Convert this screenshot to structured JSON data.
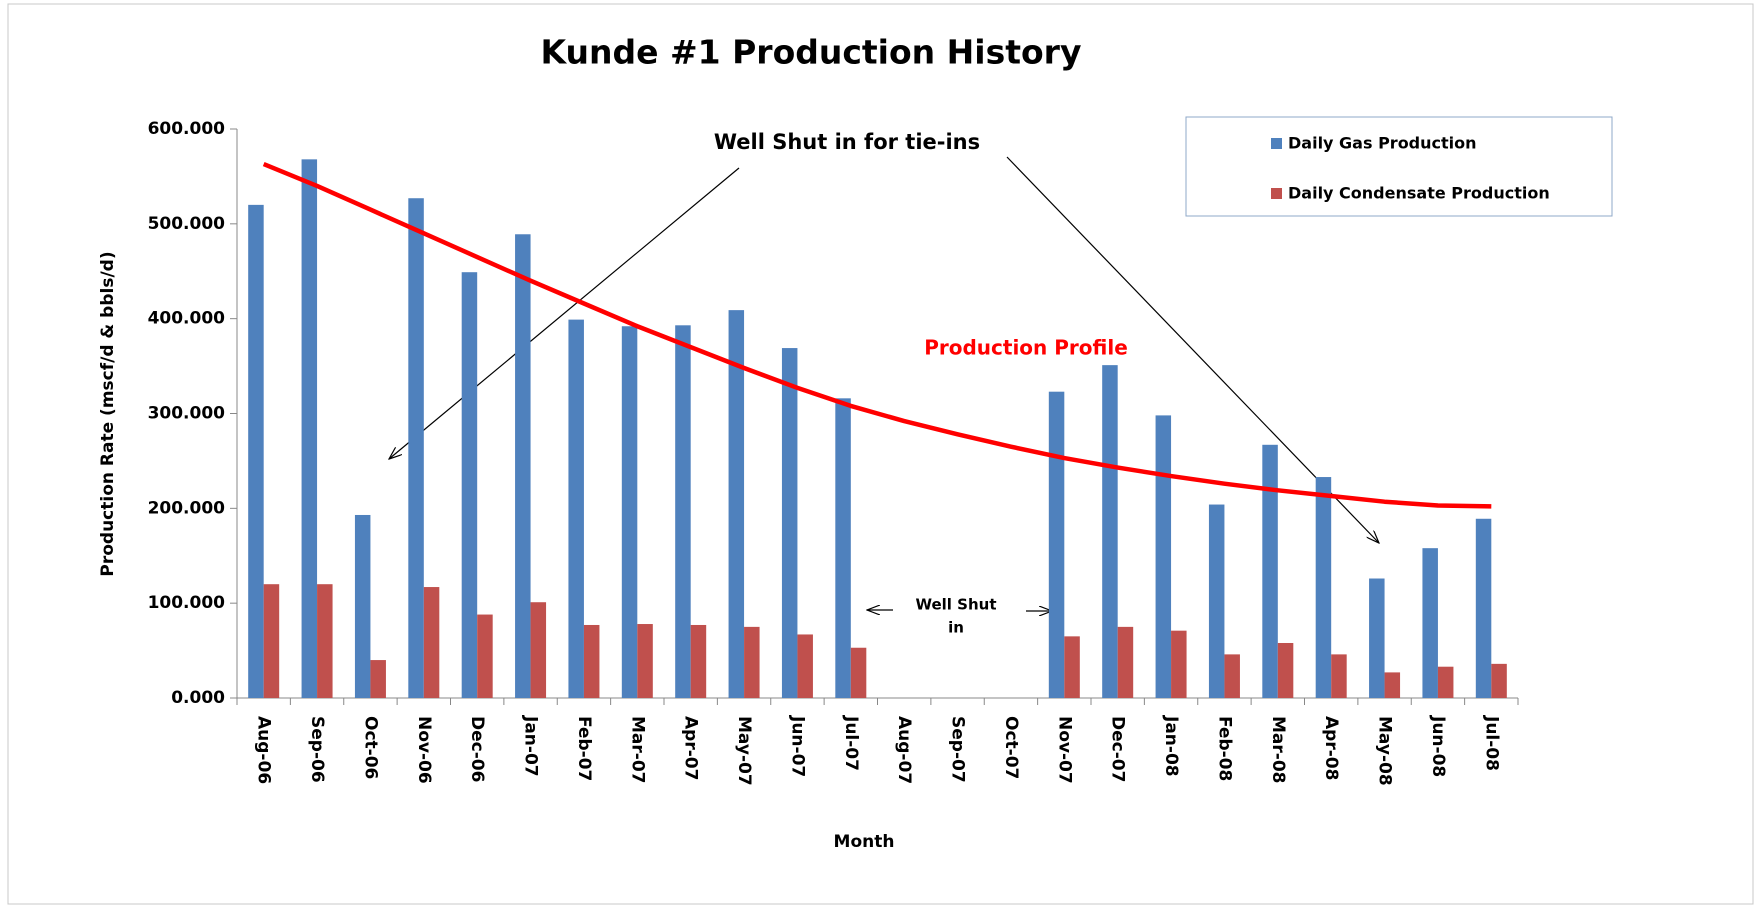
{
  "chart_data": {
    "type": "bar",
    "title": "Kunde #1  Production History",
    "x_label": "Month",
    "y_label": "Production Rate  (mscf/d & bbls/d)",
    "categories": [
      "Aug-06",
      "Sep-06",
      "Oct-06",
      "Nov-06",
      "Dec-06",
      "Jan-07",
      "Feb-07",
      "Mar-07",
      "Apr-07",
      "May-07",
      "Jun-07",
      "Jul-07",
      "Aug-07",
      "Sep-07",
      "Oct-07",
      "Nov-07",
      "Dec-07",
      "Jan-08",
      "Feb-08",
      "Mar-08",
      "Apr-08",
      "May-08",
      "Jun-08",
      "Jul-08"
    ],
    "series": [
      {
        "name": "Daily Gas Production",
        "color": "#4f81bd",
        "values": [
          520,
          568,
          193,
          527,
          449,
          489,
          399,
          392,
          393,
          409,
          369,
          316,
          null,
          null,
          null,
          323,
          351,
          298,
          204,
          267,
          233,
          126,
          158,
          189
        ]
      },
      {
        "name": "Daily Condensate Production",
        "color": "#c0504d",
        "values": [
          120,
          120,
          40,
          117,
          88,
          101,
          77,
          78,
          77,
          75,
          67,
          53,
          null,
          null,
          null,
          65,
          75,
          71,
          46,
          58,
          46,
          27,
          33,
          36
        ]
      }
    ],
    "profile": {
      "label": "Production Profile",
      "color": "#ff0000",
      "values": [
        563,
        540,
        515,
        490,
        465,
        440,
        416,
        392,
        370,
        348,
        327,
        308,
        292,
        278,
        265,
        253,
        243,
        234,
        226,
        219,
        213,
        207,
        203,
        202
      ]
    },
    "annotations": {
      "tie_ins": "Well Shut in for tie-ins",
      "shut_in": [
        "Well Shut",
        "in"
      ]
    },
    "ylim": [
      0,
      600
    ],
    "yticks": [
      {
        "value": 0,
        "label": "0.000"
      },
      {
        "value": 100,
        "label": "100.000"
      },
      {
        "value": 200,
        "label": "200.000"
      },
      {
        "value": 300,
        "label": "300.000"
      },
      {
        "value": 400,
        "label": "400.000"
      },
      {
        "value": 500,
        "label": "500.000"
      },
      {
        "value": 600,
        "label": "600.000"
      }
    ],
    "grid": false,
    "legend": "top-right"
  }
}
